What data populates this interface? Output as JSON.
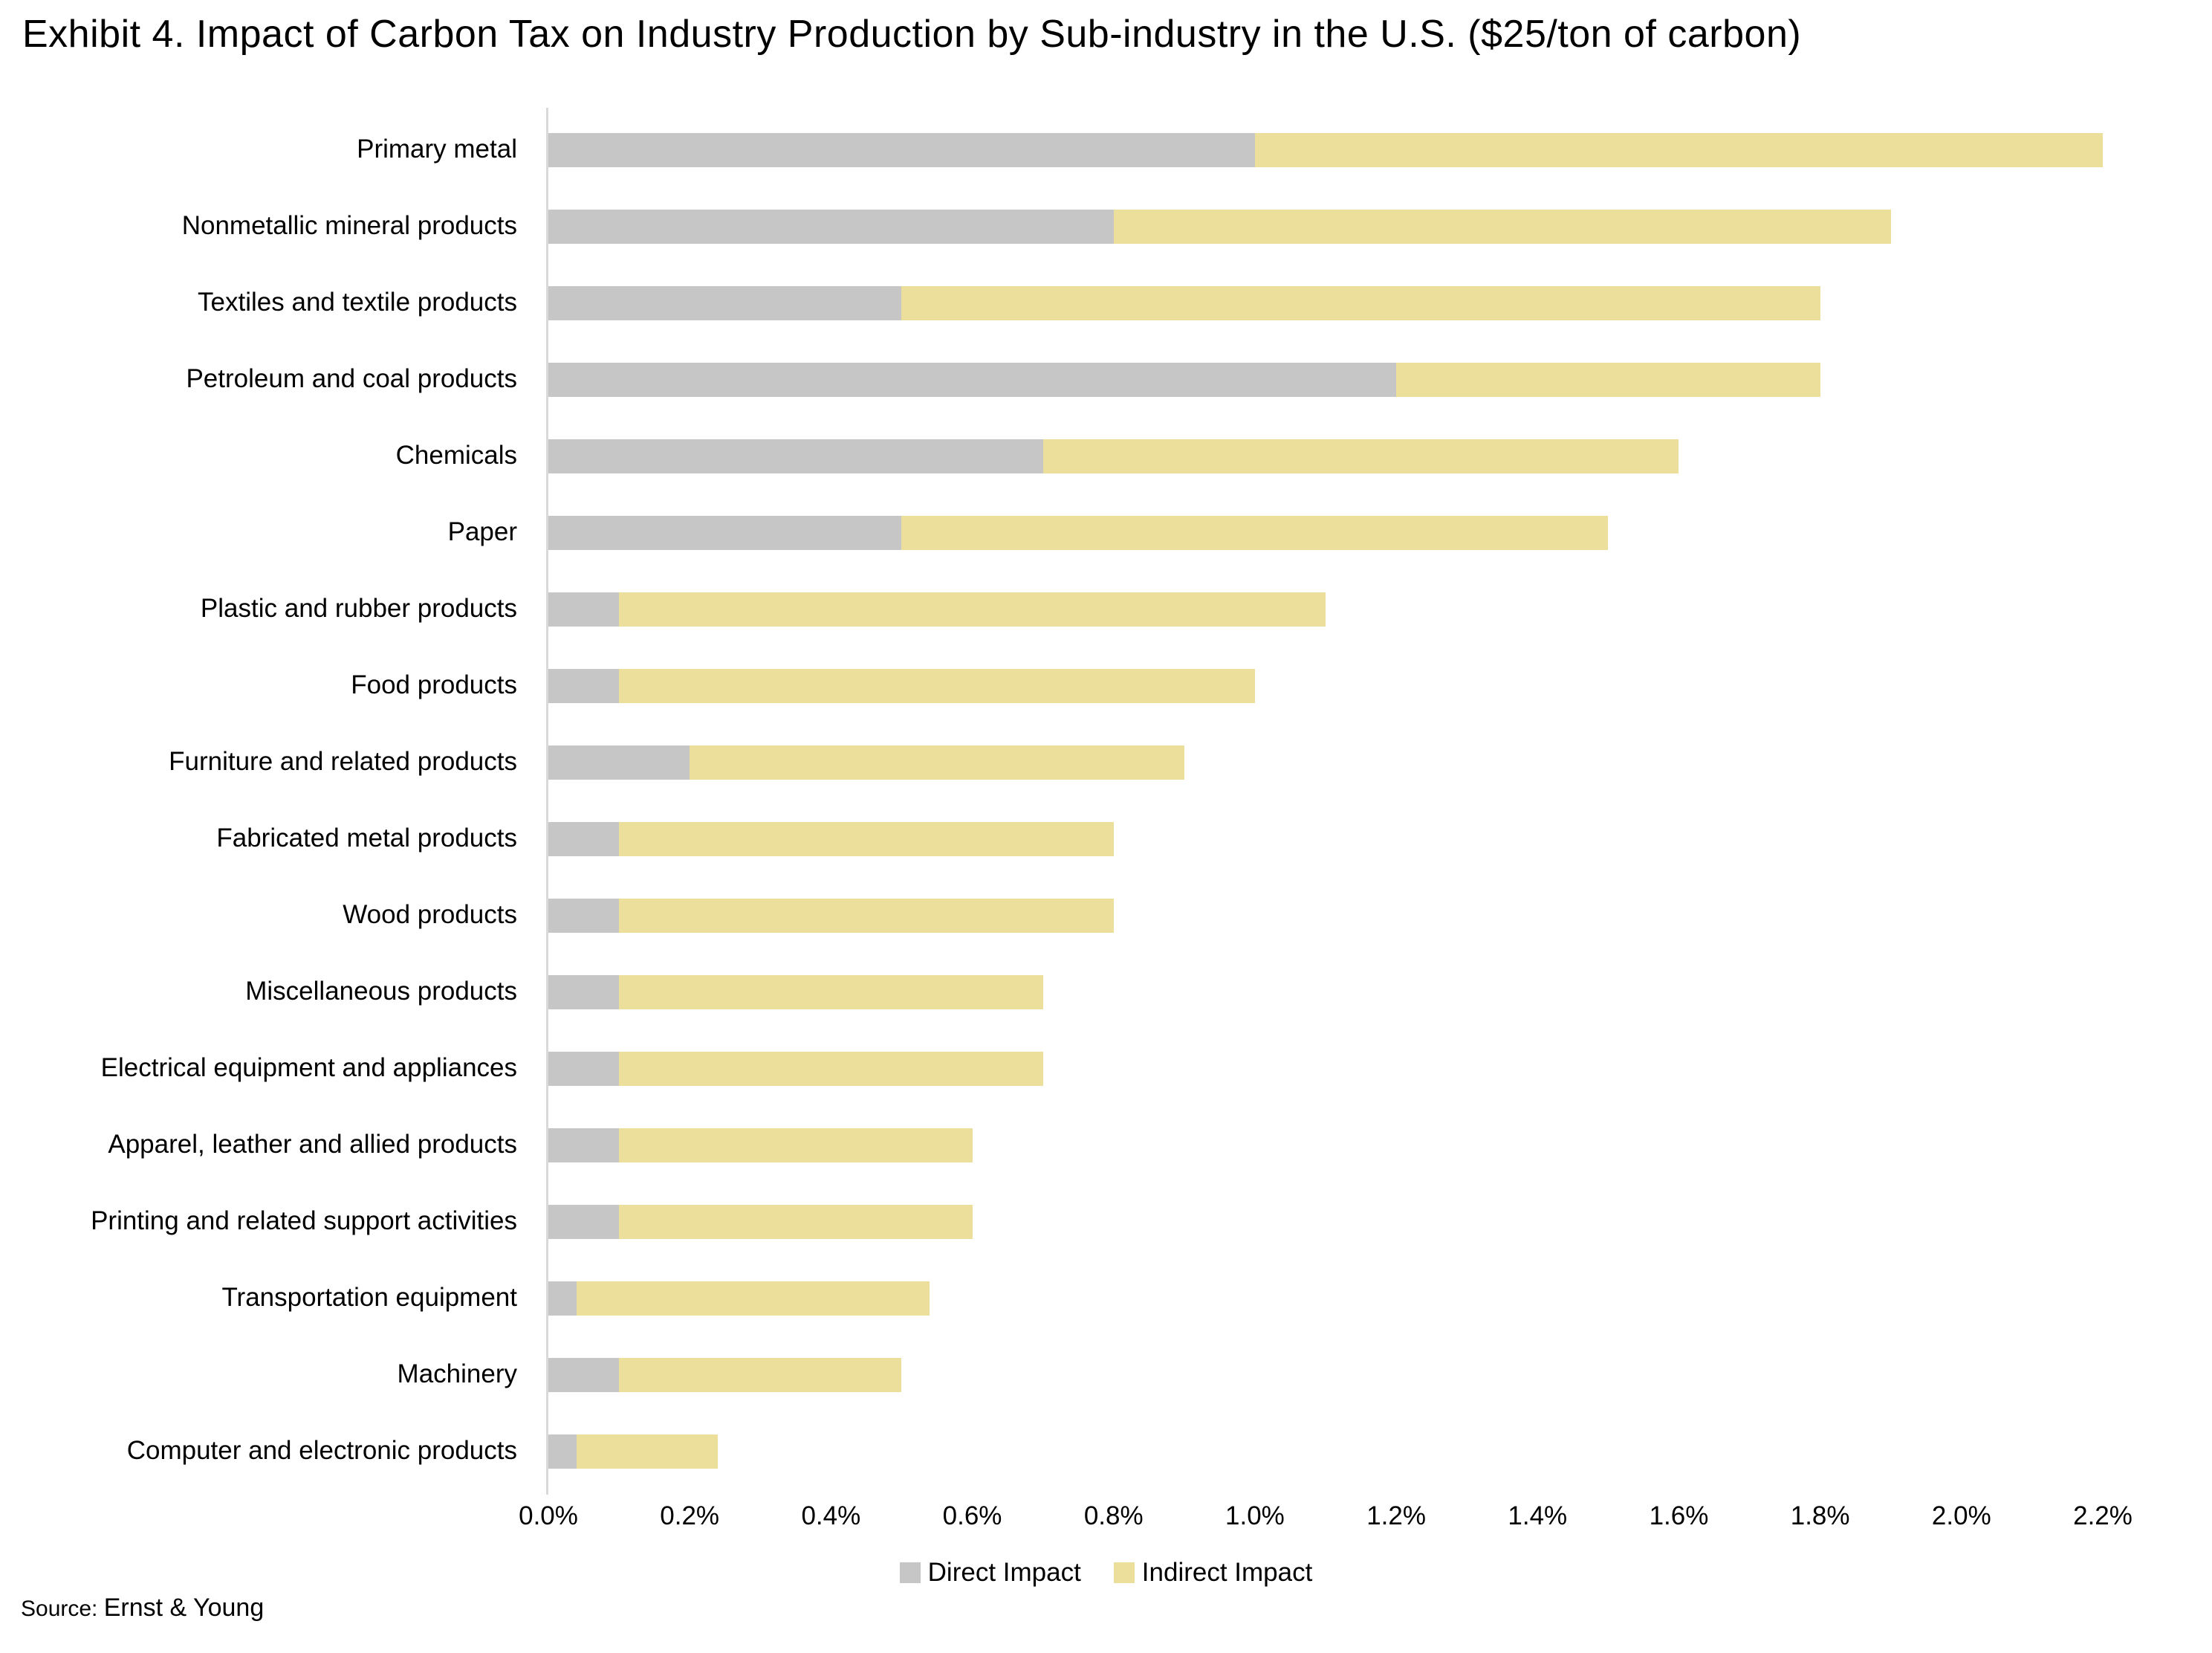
{
  "title": "Exhibit 4. Impact of Carbon Tax on Industry Production by Sub-industry in the U.S. ($25/ton of carbon)",
  "source": {
    "prefix": "Source:",
    "name": "Ernst & Young"
  },
  "legend": [
    {
      "label": "Direct Impact",
      "color": "#c6c6c6"
    },
    {
      "label": "Indirect Impact",
      "color": "#ecdf9b"
    }
  ],
  "colors": {
    "direct": "#c6c6c6",
    "indirect": "#ecdf9b",
    "axis_line": "#d9d9d9"
  },
  "chart_data": {
    "type": "bar",
    "orientation": "horizontal",
    "stacked": true,
    "title": "Exhibit 4. Impact of Carbon Tax on Industry Production by Sub-industry in the U.S. ($25/ton of carbon)",
    "xlabel": "",
    "ylabel": "",
    "grid": false,
    "legend_position": "bottom-center",
    "categories": [
      "Primary metal",
      "Nonmetallic mineral products",
      "Textiles and textile products",
      "Petroleum and coal products",
      "Chemicals",
      "Paper",
      "Plastic and rubber products",
      "Food products",
      "Furniture and related products",
      "Fabricated metal products",
      "Wood products",
      "Miscellaneous products",
      "Electrical equipment and appliances",
      "Apparel, leather and allied products",
      "Printing and related support activities",
      "Transportation equipment",
      "Machinery",
      "Computer and electronic products"
    ],
    "series": [
      {
        "name": "Direct Impact",
        "color": "#c6c6c6",
        "values": [
          1.0,
          0.8,
          0.5,
          1.2,
          0.7,
          0.5,
          0.1,
          0.1,
          0.2,
          0.1,
          0.1,
          0.1,
          0.1,
          0.1,
          0.1,
          0.04,
          0.1,
          0.04
        ]
      },
      {
        "name": "Indirect Impact",
        "color": "#ecdf9b",
        "values": [
          1.2,
          1.1,
          1.3,
          0.6,
          0.9,
          1.0,
          1.0,
          0.9,
          0.7,
          0.7,
          0.7,
          0.6,
          0.6,
          0.5,
          0.5,
          0.5,
          0.4,
          0.2
        ]
      }
    ],
    "x_axis": {
      "unit": "%",
      "min": 0,
      "max": 2.2,
      "step": 0.2,
      "tick_labels": [
        "0.0%",
        "0.2%",
        "0.4%",
        "0.6%",
        "0.8%",
        "1.0%",
        "1.2%",
        "1.4%",
        "1.6%",
        "1.8%",
        "2.0%",
        "2.2%"
      ]
    }
  }
}
